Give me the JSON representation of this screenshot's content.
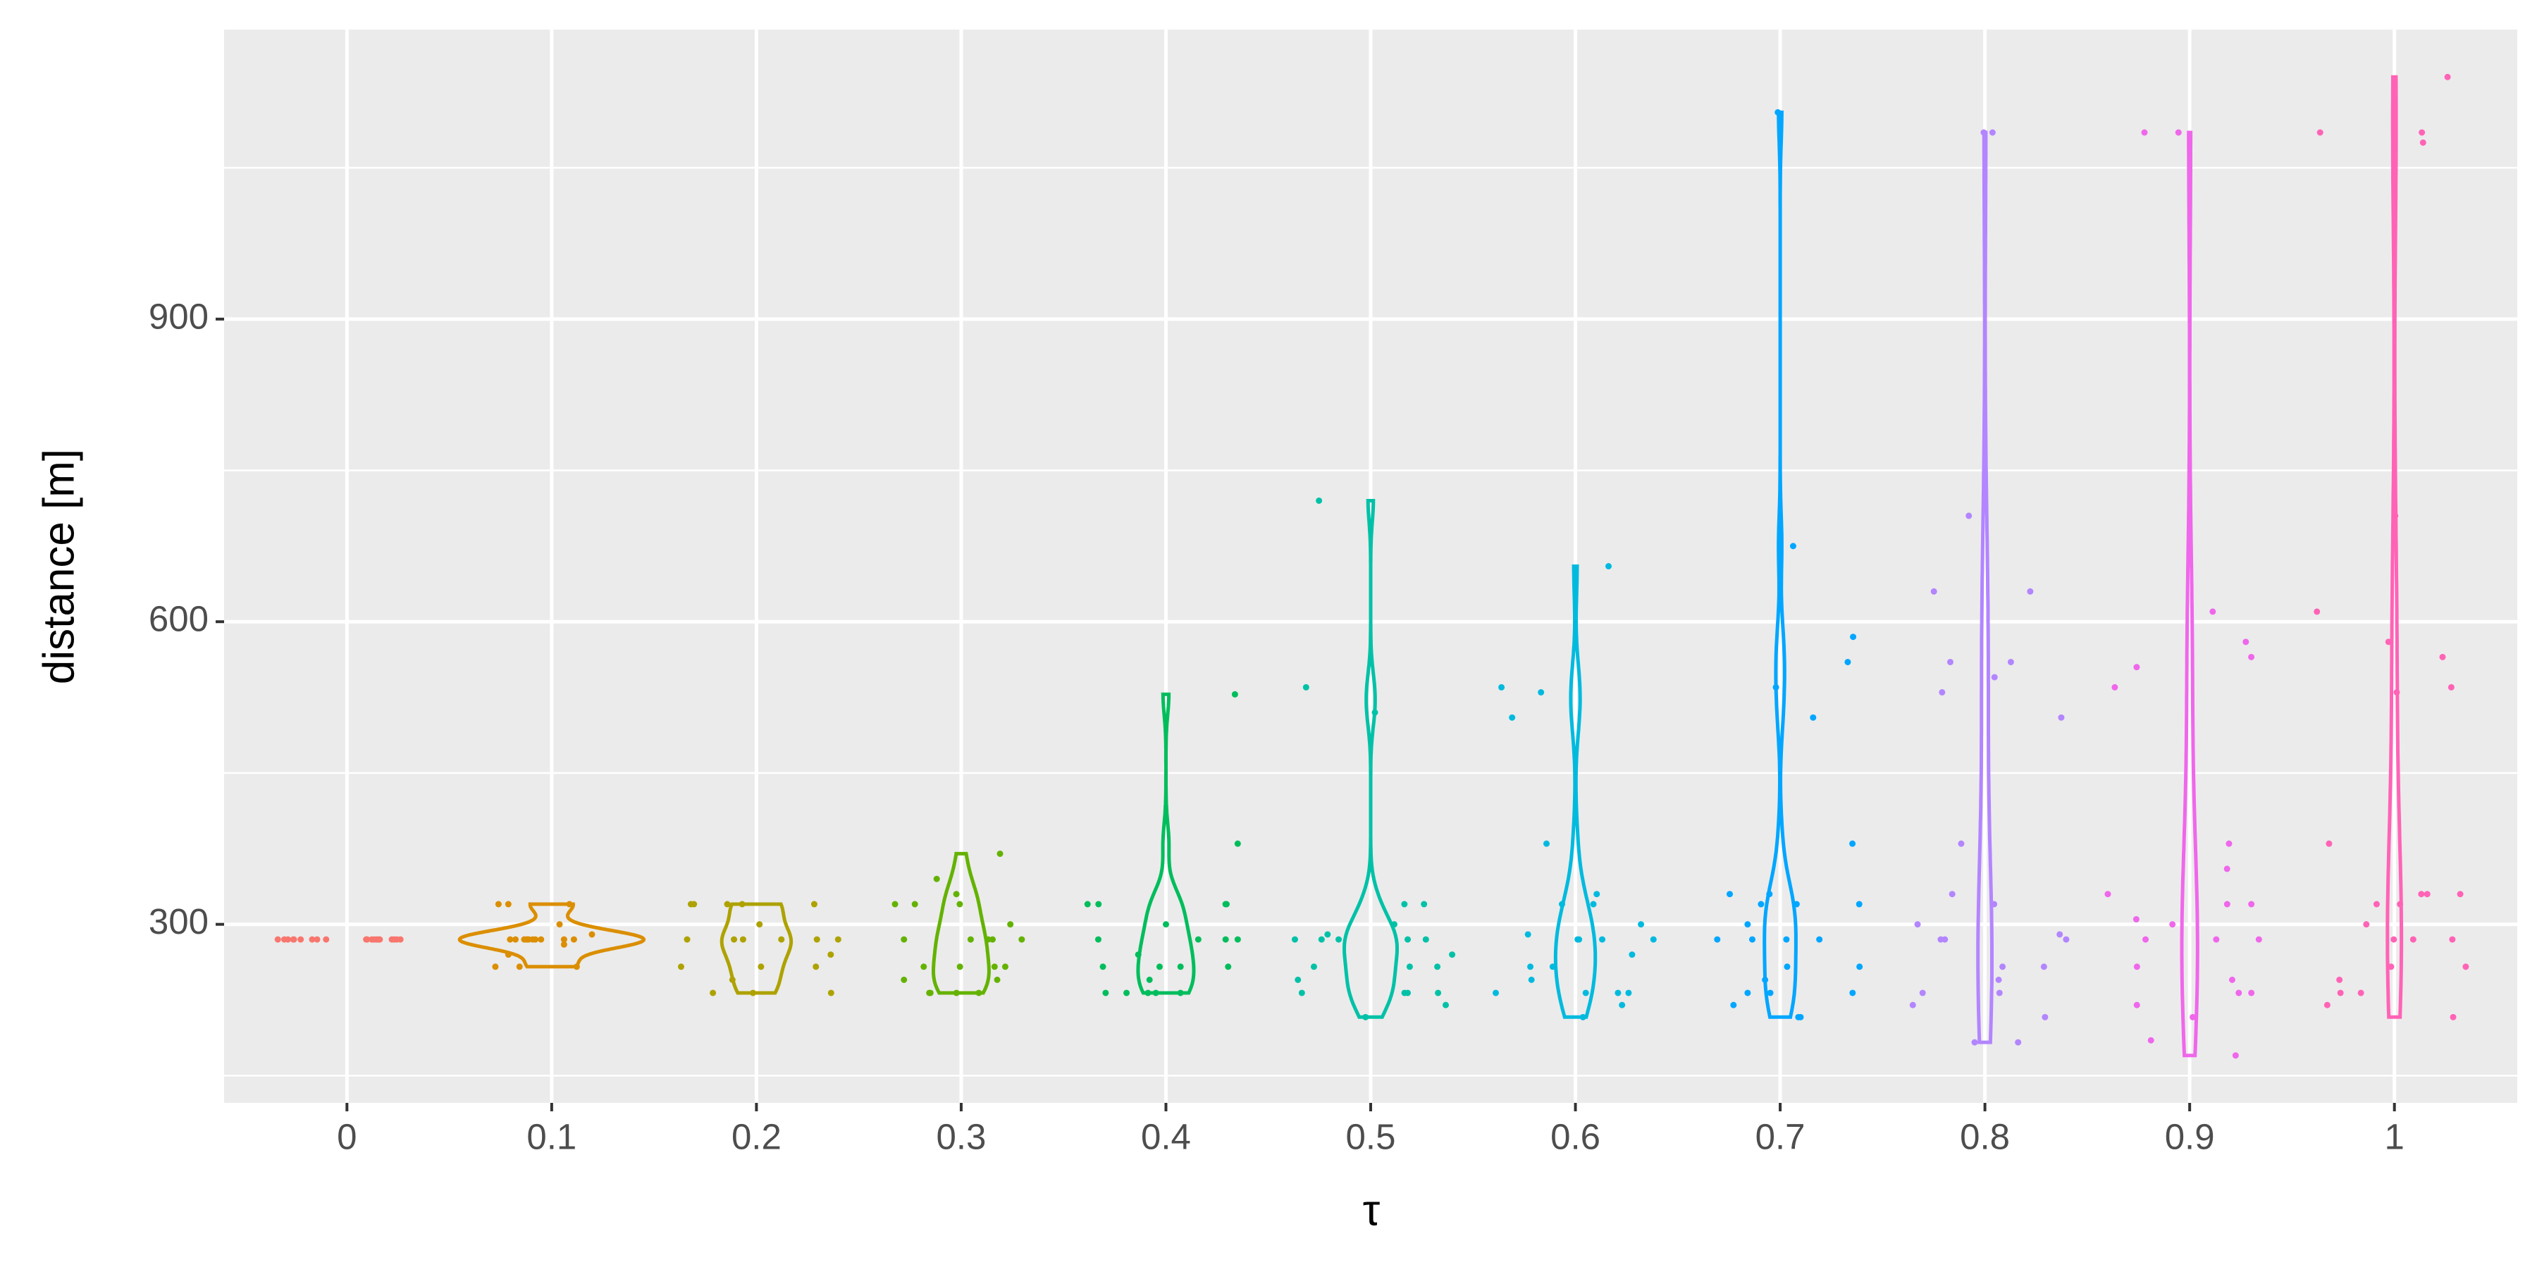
{
  "chart_data": {
    "type": "violin",
    "x_label": "τ",
    "y_label": "distance [m]",
    "categories": [
      "0",
      "0.1",
      "0.2",
      "0.3",
      "0.4",
      "0.5",
      "0.6",
      "0.7",
      "0.8",
      "0.9",
      "1"
    ],
    "series": [
      {
        "color": "#F8766D",
        "values": [
          285,
          285,
          285,
          285,
          285,
          285,
          285,
          285,
          285,
          285,
          285,
          285,
          285,
          285,
          285,
          285,
          285,
          285,
          285,
          285
        ]
      },
      {
        "color": "#DB8E00",
        "values": [
          258,
          258,
          258,
          270,
          280,
          285,
          285,
          285,
          285,
          285,
          285,
          285,
          285,
          285,
          285,
          285,
          290,
          300,
          320,
          320,
          320
        ]
      },
      {
        "color": "#AEA200",
        "values": [
          232,
          232,
          232,
          245,
          258,
          258,
          258,
          270,
          285,
          285,
          285,
          285,
          285,
          285,
          300,
          320,
          320,
          320,
          320,
          320
        ]
      },
      {
        "color": "#64B200",
        "values": [
          232,
          232,
          232,
          232,
          245,
          245,
          258,
          258,
          258,
          258,
          285,
          285,
          285,
          285,
          285,
          300,
          320,
          320,
          320,
          330,
          345,
          370
        ]
      },
      {
        "color": "#00BD5C",
        "values": [
          232,
          232,
          232,
          232,
          232,
          245,
          258,
          258,
          258,
          258,
          270,
          285,
          285,
          285,
          285,
          300,
          320,
          320,
          320,
          320,
          380,
          528
        ]
      },
      {
        "color": "#00C1A7",
        "values": [
          208,
          220,
          232,
          232,
          232,
          232,
          245,
          258,
          258,
          258,
          270,
          285,
          285,
          285,
          285,
          285,
          290,
          300,
          320,
          320,
          510,
          535,
          720
        ]
      },
      {
        "color": "#00BADE",
        "values": [
          208,
          220,
          232,
          232,
          232,
          232,
          245,
          258,
          258,
          270,
          285,
          285,
          285,
          285,
          290,
          300,
          320,
          320,
          330,
          380,
          505,
          530,
          535,
          655
        ]
      },
      {
        "color": "#00A6FF",
        "values": [
          208,
          208,
          220,
          232,
          232,
          232,
          245,
          258,
          258,
          285,
          285,
          285,
          285,
          300,
          320,
          320,
          320,
          330,
          330,
          380,
          505,
          535,
          560,
          585,
          675,
          1105
        ]
      },
      {
        "color": "#B385FF",
        "values": [
          183,
          183,
          208,
          220,
          232,
          232,
          245,
          258,
          258,
          285,
          285,
          285,
          290,
          300,
          320,
          330,
          380,
          505,
          530,
          545,
          560,
          560,
          630,
          630,
          705,
          1085,
          1085
        ]
      },
      {
        "color": "#EF67EB",
        "values": [
          170,
          185,
          208,
          220,
          232,
          232,
          245,
          258,
          285,
          285,
          285,
          300,
          305,
          320,
          320,
          330,
          355,
          380,
          535,
          555,
          565,
          580,
          610,
          1085,
          1085
        ]
      },
      {
        "color": "#FF63B6",
        "values": [
          208,
          220,
          232,
          232,
          245,
          258,
          258,
          285,
          285,
          285,
          300,
          320,
          320,
          330,
          330,
          330,
          380,
          530,
          535,
          565,
          580,
          610,
          705,
          1075,
          1085,
          1085,
          1140
        ]
      }
    ],
    "ylim": [
      123,
      1187
    ],
    "yticks": [
      300,
      600,
      900
    ],
    "yminorticks": [
      150,
      450,
      750,
      1050
    ],
    "grid": true
  }
}
